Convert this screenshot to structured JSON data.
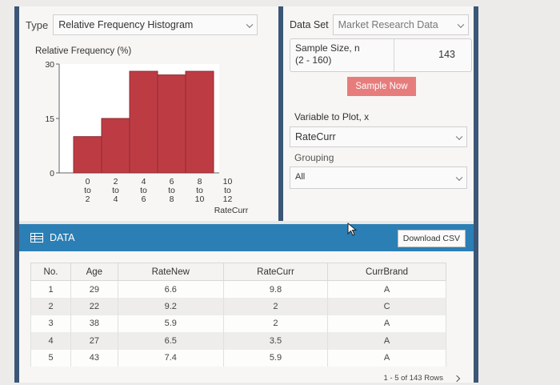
{
  "left_panel": {
    "type_label": "Type",
    "type_value": "Relative Frequency Histogram"
  },
  "chart_data": {
    "type": "bar",
    "ylabel": "Relative Frequency (%)",
    "xlabel": "RateCurr",
    "yticks": [
      0,
      15,
      30
    ],
    "ylim": [
      0,
      30
    ],
    "bins": [
      {
        "from": "0",
        "to": "2",
        "value": 10
      },
      {
        "from": "2",
        "to": "4",
        "value": 15
      },
      {
        "from": "4",
        "to": "6",
        "value": 28
      },
      {
        "from": "6",
        "to": "8",
        "value": 27
      },
      {
        "from": "8",
        "to": "10",
        "value": 28
      },
      {
        "from": "10",
        "to": "12",
        "value": 0
      }
    ],
    "bin_sep": "to",
    "colors": {
      "bar": "#bd3c44",
      "bar_stroke": "#8e2a30",
      "axis": "#666"
    }
  },
  "right_panel": {
    "dataset_label": "Data Set",
    "dataset_value": "Market Research Data",
    "sample_size_line1": "Sample Size, n",
    "sample_size_line2": "(2 - 160)",
    "sample_size_value": "143",
    "sample_now_label": "Sample Now",
    "variable_label": "Variable to Plot, x",
    "variable_value": "RateCurr",
    "grouping_label": "Grouping",
    "grouping_value": "All"
  },
  "data_section": {
    "title": "DATA",
    "download_label": "Download CSV",
    "columns": [
      "No.",
      "Age",
      "RateNew",
      "RateCurr",
      "CurrBrand"
    ],
    "rows": [
      [
        "1",
        "29",
        "6.6",
        "9.8",
        "A"
      ],
      [
        "2",
        "22",
        "9.2",
        "2",
        "C"
      ],
      [
        "3",
        "38",
        "5.9",
        "2",
        "A"
      ],
      [
        "4",
        "27",
        "6.5",
        "3.5",
        "A"
      ],
      [
        "5",
        "43",
        "7.4",
        "5.9",
        "A"
      ]
    ],
    "pager_text": "1 - 5 of 143 Rows"
  }
}
